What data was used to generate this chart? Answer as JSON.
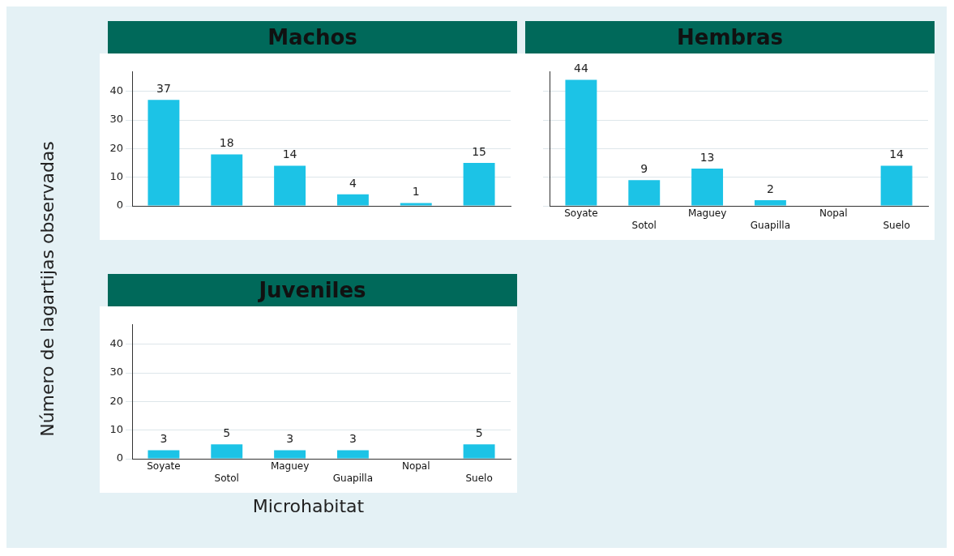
{
  "chart_data": [
    {
      "type": "bar",
      "title": "Machos",
      "ylabel": "Número de lagartijas observadas",
      "categories": [
        null,
        null,
        null,
        null,
        null,
        null
      ],
      "values": [
        37,
        18,
        14,
        4,
        1,
        15
      ],
      "color": "#1cc3e6",
      "ylim": [
        0,
        47
      ],
      "yticks": [
        0,
        10,
        20,
        30,
        40
      ],
      "grid": "y",
      "data_labels": true,
      "tick_labels": "y"
    },
    {
      "type": "bar",
      "title": "Hembras",
      "categories": [
        "Soyate",
        "Sotol",
        "Maguey",
        "Guapilla",
        "Nopal",
        "Suelo"
      ],
      "values": [
        44,
        9,
        13,
        2,
        0,
        14
      ],
      "value_labels": [
        "44",
        "9",
        "13",
        "2",
        null,
        "14"
      ],
      "color": "#1cc3e6",
      "ylim": [
        0,
        47
      ],
      "yticks": [
        0,
        10,
        20,
        30,
        40
      ],
      "grid": "y",
      "tick_labels": "x"
    },
    {
      "type": "bar",
      "title": "Juveniles",
      "xlabel": "Microhabitat",
      "categories": [
        "Soyate",
        "Sotol",
        "Maguey",
        "Guapilla",
        "Nopal",
        "Suelo"
      ],
      "values": [
        3,
        5,
        3,
        3,
        0,
        5
      ],
      "value_labels": [
        "3",
        "5",
        "3",
        "3",
        null,
        "5"
      ],
      "color": "#1cc3e6",
      "ylim": [
        0,
        47
      ],
      "yticks": [
        0,
        10,
        20,
        30,
        40
      ],
      "grid": "y"
    }
  ]
}
